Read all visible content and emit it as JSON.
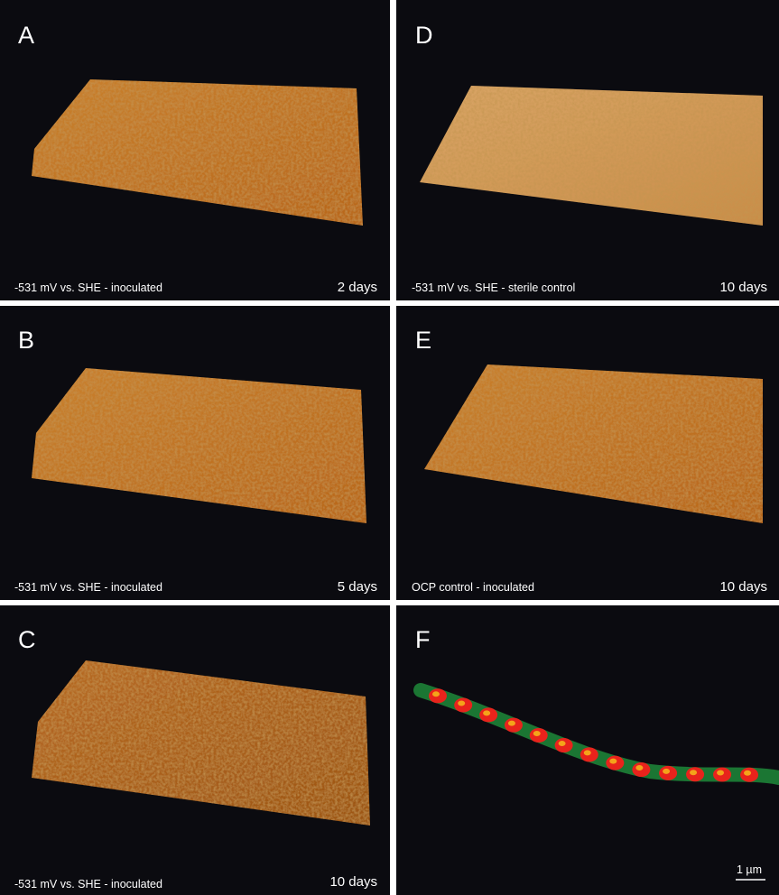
{
  "panels": [
    {
      "letter": "A",
      "caption": "-531 mV vs. SHE - inoculated",
      "duration": "2 days"
    },
    {
      "letter": "B",
      "caption": "-531 mV vs. SHE - inoculated",
      "duration": "5 days"
    },
    {
      "letter": "C",
      "caption": "-531 mV vs. SHE - inoculated",
      "duration": "10 days"
    },
    {
      "letter": "D",
      "caption": "-531 mV vs. SHE - sterile control",
      "duration": "10 days"
    },
    {
      "letter": "E",
      "caption": "OCP control - inoculated",
      "duration": "10 days"
    },
    {
      "letter": "F",
      "scale_bar": "1 µm"
    }
  ]
}
